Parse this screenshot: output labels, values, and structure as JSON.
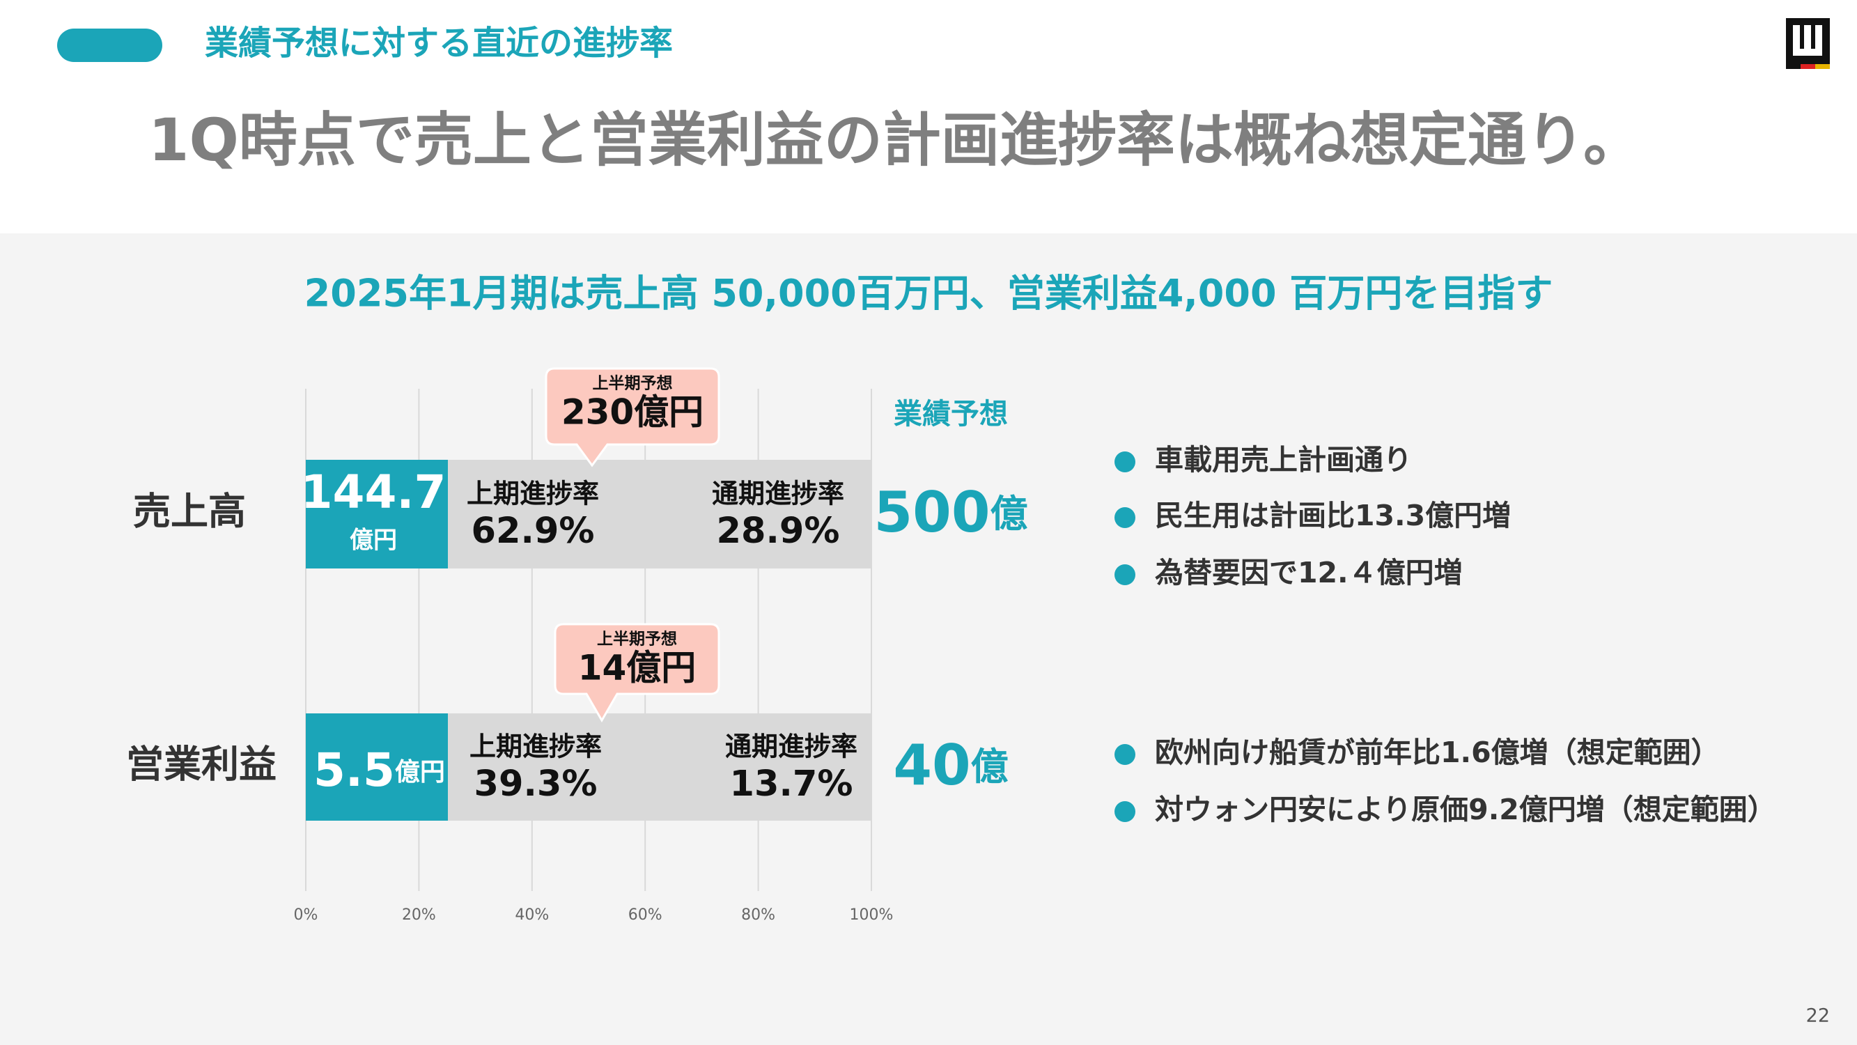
{
  "header": {
    "section": "業績予想に対する直近の進捗率",
    "headline": "1Q時点で売上と営業利益の計画進捗率は概ね想定通り。"
  },
  "chart_data": {
    "type": "progress",
    "title": "2025年1月期は売上高 50,000百万円、営業利益4,000 百万円を目指す",
    "categories": [
      "売上高",
      "営業利益"
    ],
    "actual_values": [
      144.7,
      5.5
    ],
    "actual_unit": "億円",
    "color": "#1ba5b8",
    "h1_progress": {
      "name": "上期進捗率",
      "values": [
        62.9,
        39.3
      ],
      "value_labels": [
        "62.9%",
        "39.3%"
      ]
    },
    "full_progress": {
      "name": "通期進捗率",
      "values": [
        28.9,
        13.7
      ],
      "value_labels": [
        "28.9%",
        "13.7%"
      ]
    },
    "h1_forecast": {
      "name": "上半期予想",
      "values": [
        230,
        14
      ],
      "value_labels": [
        "230億円",
        "14億円"
      ]
    },
    "forecast": {
      "name": "業績予想",
      "values": [
        500,
        40
      ],
      "unit": "億"
    },
    "xlim": [
      0,
      100
    ],
    "xticks": [
      {
        "value": 0,
        "label": "0%"
      },
      {
        "value": 20,
        "label": "20%"
      },
      {
        "value": 40,
        "label": "40%"
      },
      {
        "value": 60,
        "label": "60%"
      },
      {
        "value": 80,
        "label": "80%"
      },
      {
        "value": 100,
        "label": "100%"
      }
    ],
    "grid": true
  },
  "notes": [
    [
      "車載用売上計画通り",
      "民生用は計画比13.3億円増",
      "為替要因で12.４億円増"
    ],
    [
      "欧州向け船賃が前年比1.6億増（想定範囲）",
      "対ウォン円安により原価9.2億円増（想定範囲）"
    ]
  ],
  "page_number": "22"
}
